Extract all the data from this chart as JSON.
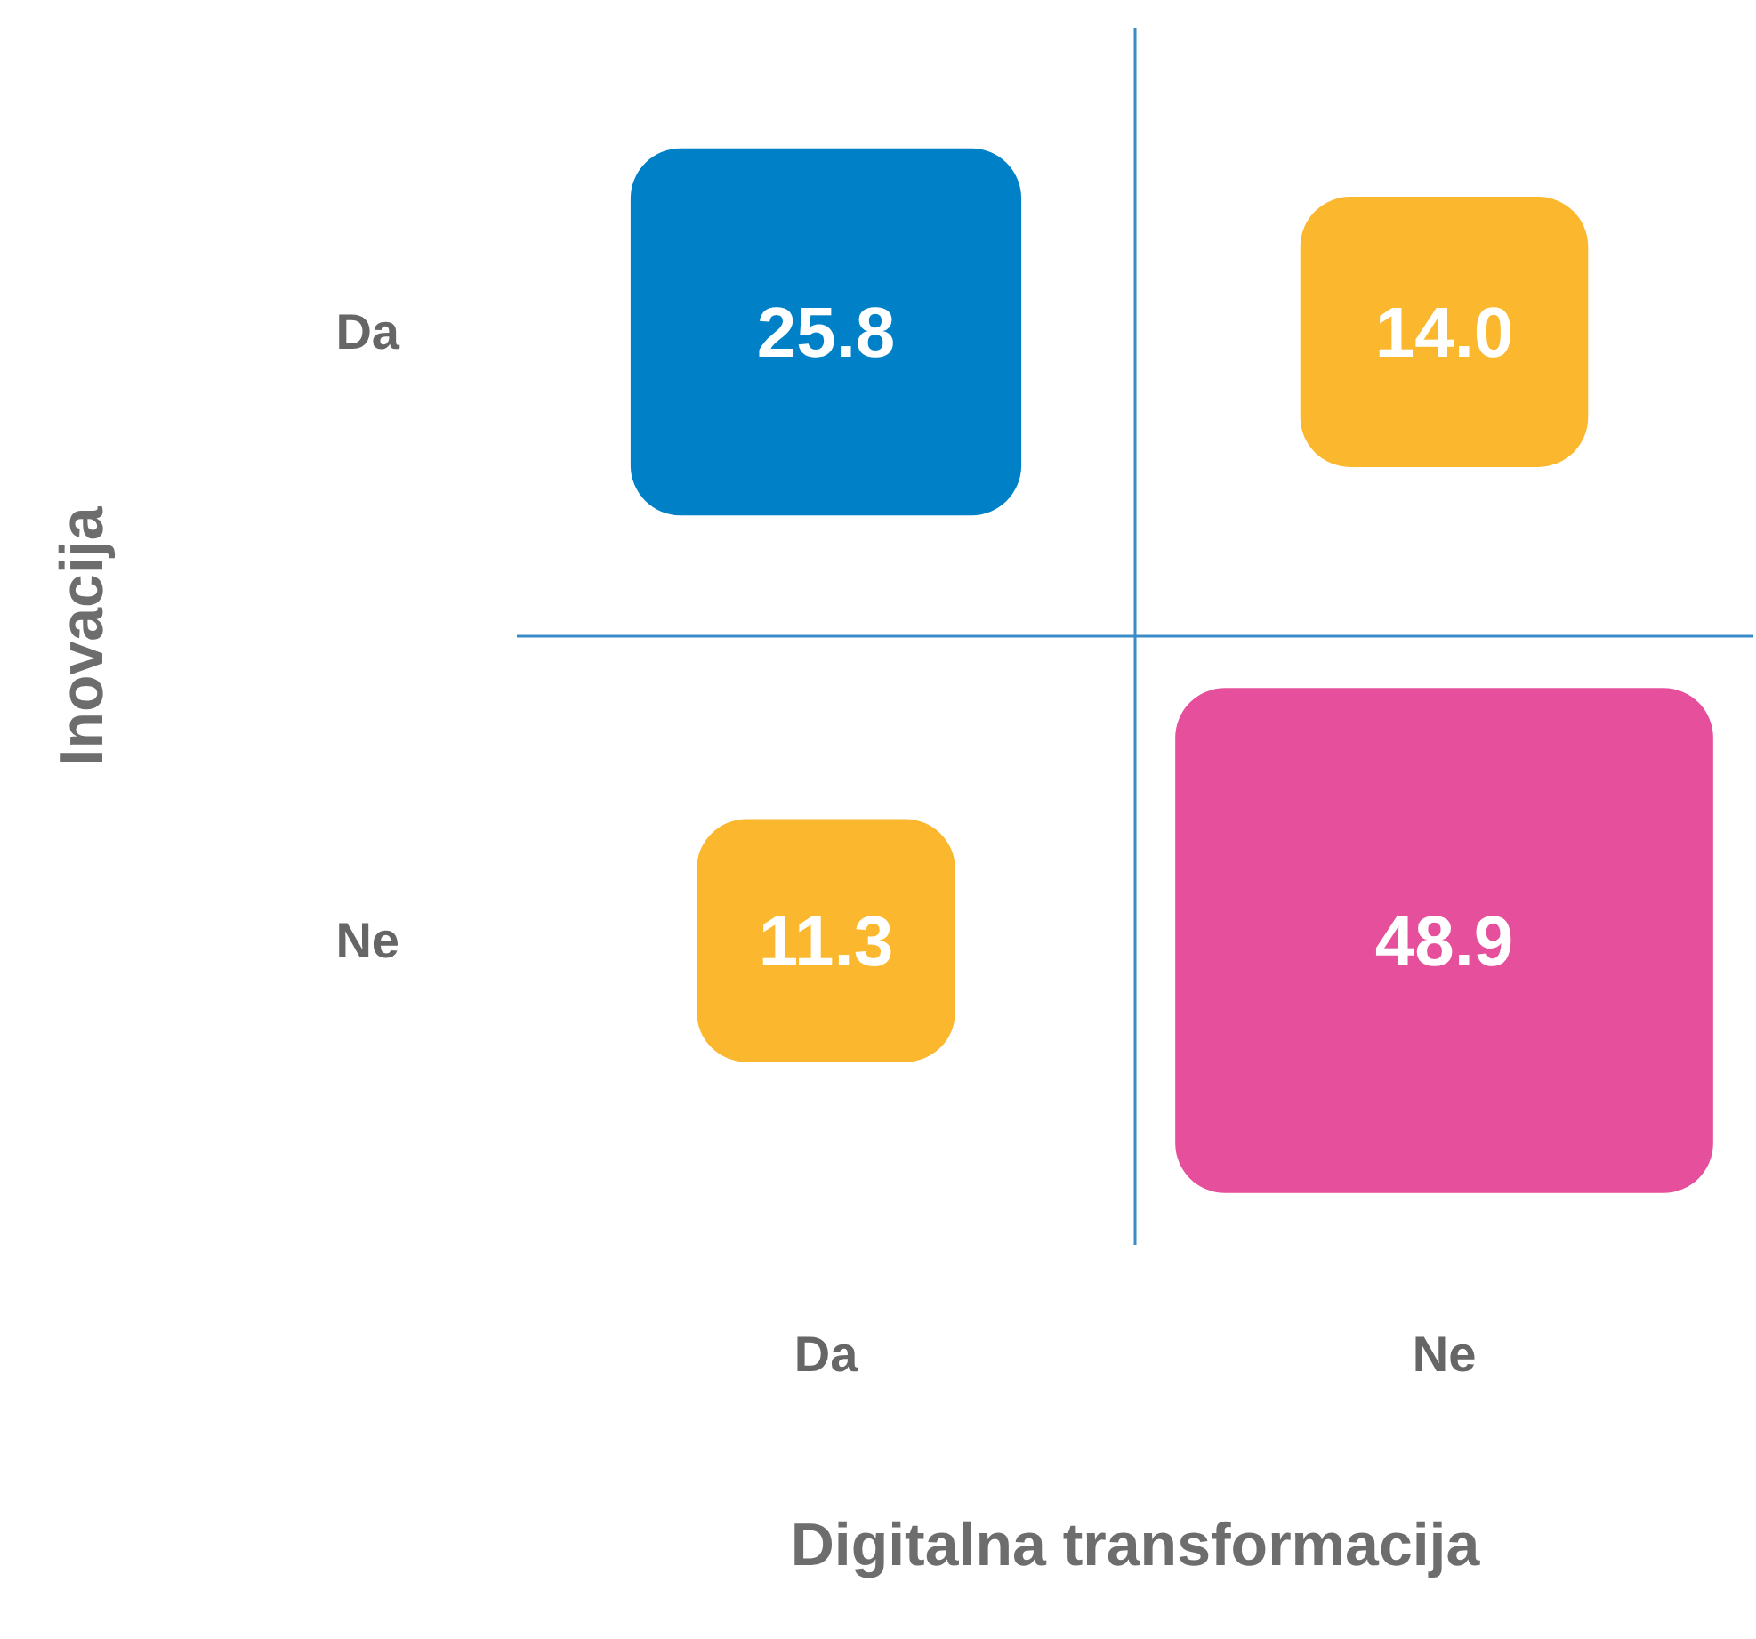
{
  "chart_data": {
    "type": "heatmap",
    "xlabel": "Digitalna transformacija",
    "ylabel": "Inovacija",
    "categories": [
      "Da",
      "Ne"
    ],
    "y_categories": [
      "Da",
      "Ne"
    ],
    "cells": [
      [
        25.8,
        14.0
      ],
      [
        11.3,
        48.9
      ]
    ],
    "cell_labels": [
      [
        "25.8",
        "14.0"
      ],
      [
        "11.3",
        "48.9"
      ]
    ],
    "colors": [
      "#0080c6",
      "#fbb72d",
      "#fbb72d",
      "#e54f9b"
    ],
    "grid": true
  }
}
